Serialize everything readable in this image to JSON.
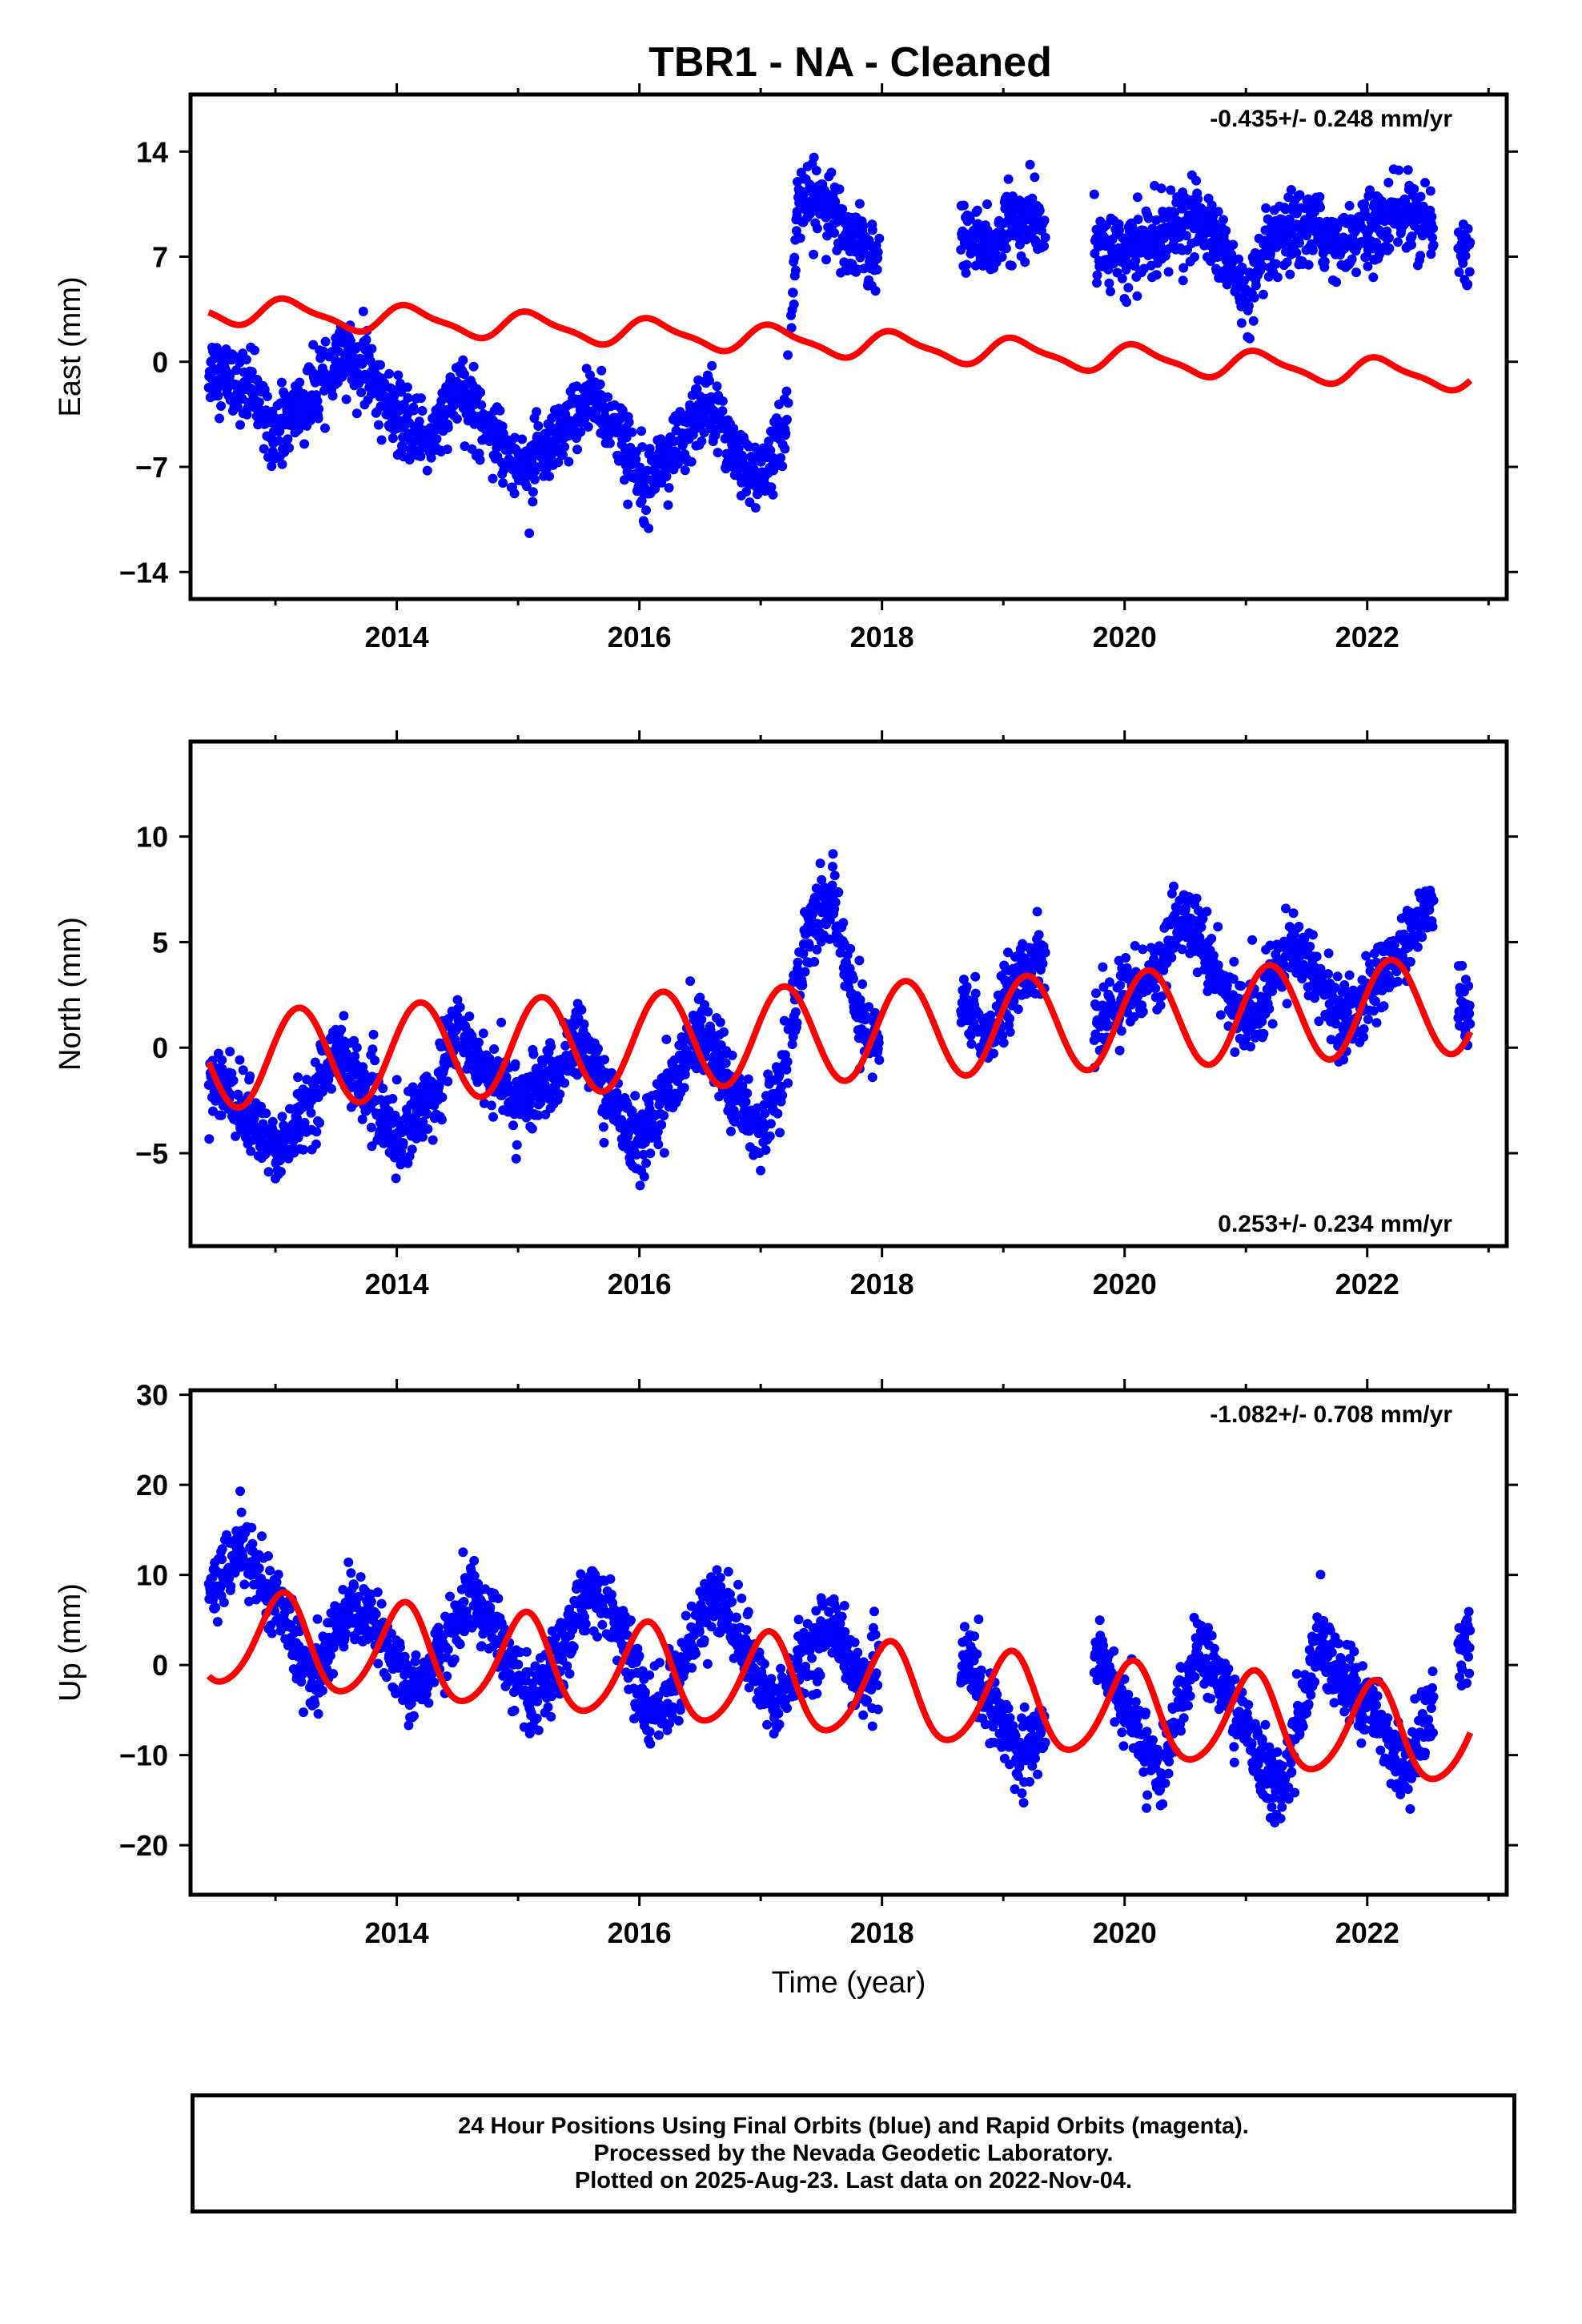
{
  "title": "TBR1  - NA - Cleaned",
  "footer": {
    "line1": "24 Hour Positions Using Final Orbits (blue) and Rapid Orbits (magenta).",
    "line2": "Processed by the Nevada Geodetic Laboratory.",
    "line3": "Plotted on 2025-Aug-23. Last data on 2022-Nov-04."
  },
  "colors": {
    "data_points": "#0000ff",
    "model_fit": "#ff0000",
    "frame": "#000000"
  },
  "chart_data": [
    {
      "type": "scatter",
      "component": "east",
      "ylabel": "East (mm)",
      "xlabel": "",
      "xlim": [
        2012.3,
        2023.15
      ],
      "ylim": [
        -15.8,
        17.8
      ],
      "xticks": [
        2014,
        2016,
        2018,
        2020,
        2022
      ],
      "yticks": [
        -14,
        -7,
        0,
        7,
        14
      ],
      "rate_label": "-0.435+/- 0.248 mm/yr",
      "rate_label_position": "top-right",
      "grid": false,
      "data_segments": [
        {
          "start": 2012.45,
          "end": 2017.23
        },
        {
          "start": 2017.25,
          "end": 2017.98
        },
        {
          "start": 2018.65,
          "end": 2019.35
        },
        {
          "start": 2019.75,
          "end": 2022.55
        },
        {
          "start": 2022.75,
          "end": 2022.85
        }
      ],
      "series": [
        {
          "name": "Final Orbits",
          "kind": "points",
          "color": "#0000ff",
          "x": [
            2012.5,
            2012.8,
            2013.0,
            2013.3,
            2013.6,
            2013.8,
            2014.0,
            2014.3,
            2014.5,
            2014.8,
            2015.0,
            2015.3,
            2015.6,
            2015.8,
            2016.0,
            2016.3,
            2016.6,
            2016.8,
            2017.0,
            2017.2,
            2017.3,
            2017.5,
            2017.7,
            2017.9,
            2018.7,
            2018.9,
            2019.1,
            2019.3,
            2019.8,
            2020.0,
            2020.3,
            2020.6,
            2020.8,
            2021.0,
            2021.2,
            2021.5,
            2021.8,
            2022.0,
            2022.3,
            2022.5,
            2022.8
          ],
          "y": [
            -0.5,
            -2.0,
            -4.5,
            -2.5,
            0.5,
            -1.0,
            -4.0,
            -5.0,
            -2.0,
            -4.5,
            -7.0,
            -6.0,
            -2.0,
            -4.5,
            -7.5,
            -6.0,
            -2.5,
            -6.5,
            -8.0,
            -4.5,
            10.0,
            11.0,
            8.5,
            7.0,
            8.5,
            7.5,
            9.5,
            9.0,
            8.0,
            7.0,
            8.5,
            9.5,
            7.5,
            4.0,
            7.5,
            9.0,
            8.0,
            8.5,
            10.0,
            9.0,
            7.0
          ]
        },
        {
          "name": "Model",
          "kind": "line",
          "color": "#ff0000",
          "trend": {
            "ref_year": 2012.45,
            "offset_mm": 3.5,
            "rate_mm_yr": -0.435
          },
          "seasonal": {
            "annual_amp_mm": 0.85,
            "annual_phase": 0.8,
            "semiannual_amp_mm": 0.25,
            "semiannual_phase": 1.5
          }
        }
      ]
    },
    {
      "type": "scatter",
      "component": "north",
      "ylabel": "North (mm)",
      "xlabel": "",
      "xlim": [
        2012.3,
        2023.15
      ],
      "ylim": [
        -9.4,
        14.5
      ],
      "xticks": [
        2014,
        2016,
        2018,
        2020,
        2022
      ],
      "yticks": [
        -5,
        0,
        5,
        10
      ],
      "rate_label": "0.253+/- 0.234 mm/yr",
      "rate_label_position": "bottom-right",
      "grid": false,
      "data_segments": [
        {
          "start": 2012.45,
          "end": 2017.23
        },
        {
          "start": 2017.25,
          "end": 2017.98
        },
        {
          "start": 2018.65,
          "end": 2019.35
        },
        {
          "start": 2019.75,
          "end": 2022.55
        },
        {
          "start": 2022.75,
          "end": 2022.85
        }
      ],
      "series": [
        {
          "name": "Final Orbits",
          "kind": "points",
          "color": "#0000ff",
          "x": [
            2012.5,
            2012.8,
            2013.0,
            2013.3,
            2013.5,
            2013.8,
            2014.0,
            2014.3,
            2014.5,
            2014.8,
            2015.0,
            2015.3,
            2015.5,
            2015.8,
            2016.0,
            2016.3,
            2016.5,
            2016.8,
            2017.0,
            2017.2,
            2017.4,
            2017.6,
            2017.8,
            2017.95,
            2018.7,
            2018.9,
            2019.1,
            2019.3,
            2019.8,
            2020.0,
            2020.3,
            2020.5,
            2020.8,
            2021.0,
            2021.2,
            2021.4,
            2021.8,
            2022.0,
            2022.2,
            2022.5,
            2022.8
          ],
          "y": [
            -1.5,
            -3.5,
            -5.0,
            -2.5,
            0.0,
            -2.5,
            -4.5,
            -2.0,
            1.0,
            -1.5,
            -2.5,
            -1.5,
            0.5,
            -3.0,
            -4.5,
            -1.5,
            1.0,
            -2.5,
            -4.0,
            -1.0,
            6.0,
            7.0,
            1.5,
            0.0,
            2.0,
            0.5,
            3.5,
            4.0,
            1.0,
            2.5,
            4.0,
            6.5,
            3.0,
            1.0,
            3.0,
            5.0,
            1.0,
            2.5,
            4.0,
            6.5,
            1.5
          ]
        },
        {
          "name": "Model",
          "kind": "line",
          "color": "#ff0000",
          "trend": {
            "ref_year": 2012.45,
            "offset_mm": -0.6,
            "rate_mm_yr": 0.253
          },
          "seasonal": {
            "annual_amp_mm": 2.3,
            "annual_phase": 0.35,
            "semiannual_amp_mm": 0.0,
            "semiannual_phase": 0.0
          }
        }
      ]
    },
    {
      "type": "scatter",
      "component": "up",
      "ylabel": "Up (mm)",
      "xlabel": "Time (year)",
      "xlim": [
        2012.3,
        2023.15
      ],
      "ylim": [
        -25.5,
        30.5
      ],
      "xticks": [
        2014,
        2016,
        2018,
        2020,
        2022
      ],
      "yticks": [
        -20,
        -10,
        0,
        10,
        20,
        30
      ],
      "rate_label": "-1.082+/- 0.708 mm/yr",
      "rate_label_position": "top-right",
      "grid": false,
      "data_segments": [
        {
          "start": 2012.45,
          "end": 2017.23
        },
        {
          "start": 2017.25,
          "end": 2017.98
        },
        {
          "start": 2018.65,
          "end": 2019.35
        },
        {
          "start": 2019.75,
          "end": 2022.55
        },
        {
          "start": 2022.75,
          "end": 2022.85
        }
      ],
      "series": [
        {
          "name": "Final Orbits",
          "kind": "points",
          "color": "#0000ff",
          "x": [
            2012.5,
            2012.7,
            2013.0,
            2013.3,
            2013.6,
            2013.8,
            2014.1,
            2014.3,
            2014.6,
            2014.8,
            2015.1,
            2015.3,
            2015.6,
            2015.8,
            2016.1,
            2016.3,
            2016.6,
            2016.8,
            2017.1,
            2017.3,
            2017.6,
            2017.8,
            2018.7,
            2018.9,
            2019.2,
            2019.8,
            2020.0,
            2020.3,
            2020.6,
            2020.8,
            2021.1,
            2021.3,
            2021.6,
            2021.8,
            2022.1,
            2022.3,
            2022.8
          ],
          "y": [
            8.0,
            14.0,
            7.0,
            -2.0,
            7.0,
            5.0,
            -3.0,
            0.0,
            8.0,
            4.0,
            -5.0,
            -1.0,
            9.0,
            5.0,
            -6.0,
            -2.0,
            8.0,
            4.0,
            -5.0,
            0.0,
            5.0,
            -2.0,
            1.0,
            -5.0,
            -10.0,
            2.0,
            -5.0,
            -12.0,
            2.0,
            -2.0,
            -10.0,
            -14.0,
            3.0,
            -2.0,
            -6.0,
            -12.0,
            3.0
          ]
        },
        {
          "name": "Model",
          "kind": "line",
          "color": "#ff0000",
          "trend": {
            "ref_year": 2012.45,
            "offset_mm": 3.0,
            "rate_mm_yr": -1.082
          },
          "seasonal": {
            "annual_amp_mm": 5.2,
            "annual_phase": 1.2,
            "semiannual_amp_mm": 0.6,
            "semiannual_phase": 0.3
          }
        }
      ]
    }
  ]
}
